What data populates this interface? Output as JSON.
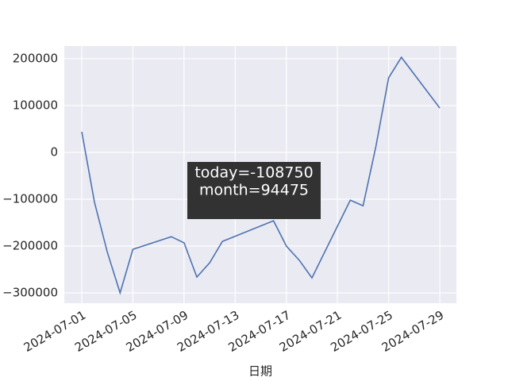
{
  "chart_data": {
    "type": "line",
    "x": [
      "2024-07-01",
      "2024-07-02",
      "2024-07-03",
      "2024-07-04",
      "2024-07-05",
      "2024-07-08",
      "2024-07-09",
      "2024-07-10",
      "2024-07-11",
      "2024-07-12",
      "2024-07-16",
      "2024-07-17",
      "2024-07-18",
      "2024-07-19",
      "2024-07-22",
      "2024-07-23",
      "2024-07-24",
      "2024-07-25",
      "2024-07-26",
      "2024-07-29"
    ],
    "series": [
      {
        "color": "#4c72b0",
        "values": [
          44000,
          -107000,
          -213000,
          -300000,
          -207000,
          -180000,
          -193000,
          -266000,
          -236000,
          -190000,
          -146000,
          -200000,
          -230000,
          -268000,
          -102000,
          -114000,
          12000,
          159000,
          203000,
          94475
        ]
      }
    ],
    "xlabel": "日期",
    "xlim": [
      "2024-06-29T15:12",
      "2024-07-30T07:12"
    ],
    "xticks": [
      "2024-07-01",
      "2024-07-05",
      "2024-07-09",
      "2024-07-13",
      "2024-07-17",
      "2024-07-21",
      "2024-07-25",
      "2024-07-29"
    ],
    "ylim": [
      -322000,
      227000
    ],
    "yticks": [
      {
        "value": -300000,
        "label": "−300000"
      },
      {
        "value": -200000,
        "label": "−200000"
      },
      {
        "value": -100000,
        "label": "−100000"
      },
      0,
      100000,
      200000
    ],
    "grid": true,
    "tooltip": [
      "today=-108750",
      "month=94475"
    ]
  }
}
